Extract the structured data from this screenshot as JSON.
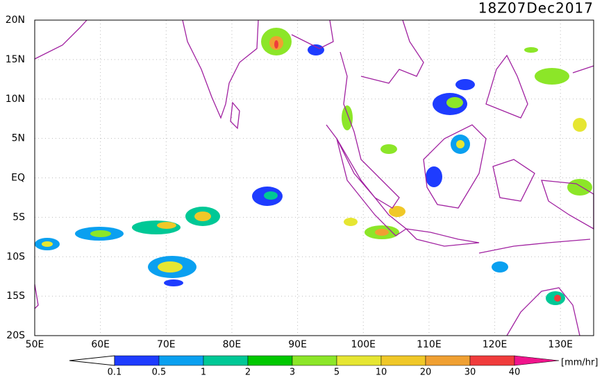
{
  "title": "18Z07Dec2017",
  "lat_ticks": [
    "20N",
    "15N",
    "10N",
    "5N",
    "EQ",
    "5S",
    "10S",
    "15S",
    "20S"
  ],
  "lon_ticks": [
    "50E",
    "60E",
    "70E",
    "80E",
    "90E",
    "100E",
    "110E",
    "120E",
    "130E"
  ],
  "colorbar": {
    "labels": [
      "0.1",
      "0.5",
      "1",
      "2",
      "3",
      "5",
      "10",
      "20",
      "30",
      "40"
    ],
    "colors": [
      "#1e3cff",
      "#0aa0f0",
      "#00c896",
      "#00c800",
      "#8ce628",
      "#e6e632",
      "#f0c828",
      "#f0a032",
      "#f03c3c",
      "#f0148c"
    ],
    "unit": "[mm/hr]"
  }
}
